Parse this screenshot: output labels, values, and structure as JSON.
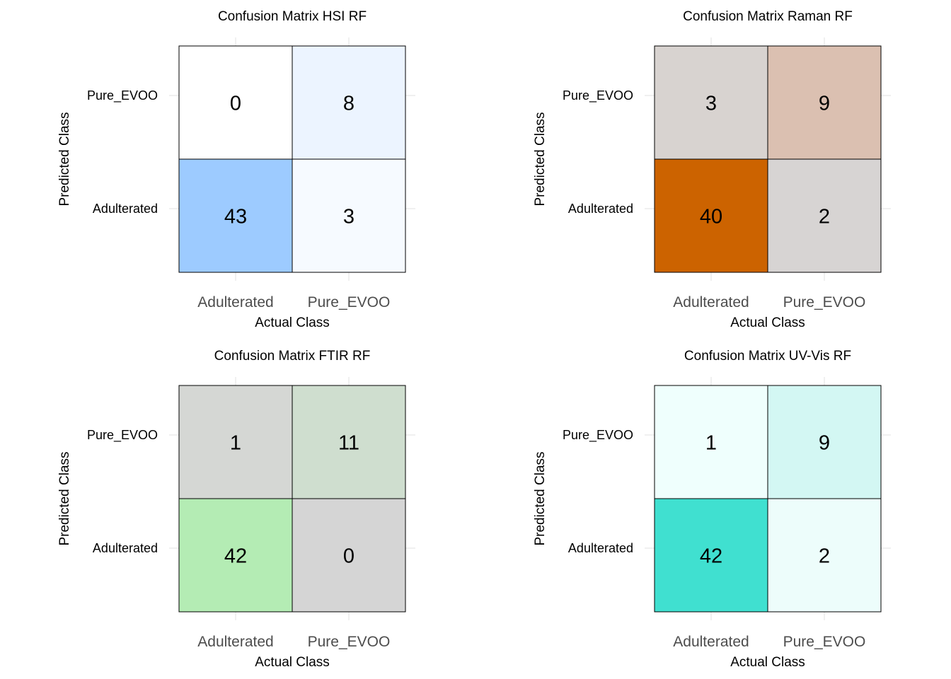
{
  "chart_data": [
    {
      "type": "heatmap",
      "title": "Confusion Matrix HSI RF",
      "xlabel": "Actual Class",
      "ylabel": "Predicted Class",
      "x_categories": [
        "Adulterated",
        "Pure_EVOO"
      ],
      "y_categories": [
        "Pure_EVOO",
        "Adulterated"
      ],
      "cells": [
        {
          "actual": "Adulterated",
          "predicted": "Pure_EVOO",
          "value": 0,
          "color": "#ffffff"
        },
        {
          "actual": "Pure_EVOO",
          "predicted": "Pure_EVOO",
          "value": 8,
          "color": "#ecf4ff"
        },
        {
          "actual": "Adulterated",
          "predicted": "Adulterated",
          "value": 43,
          "color": "#9dcbff"
        },
        {
          "actual": "Pure_EVOO",
          "predicted": "Adulterated",
          "value": 3,
          "color": "#f6faff"
        }
      ]
    },
    {
      "type": "heatmap",
      "title": "Confusion Matrix Raman RF",
      "xlabel": "Actual Class",
      "ylabel": "Predicted Class",
      "x_categories": [
        "Adulterated",
        "Pure_EVOO"
      ],
      "y_categories": [
        "Pure_EVOO",
        "Adulterated"
      ],
      "cells": [
        {
          "actual": "Adulterated",
          "predicted": "Pure_EVOO",
          "value": 3,
          "color": "#d8d3d0"
        },
        {
          "actual": "Pure_EVOO",
          "predicted": "Pure_EVOO",
          "value": 9,
          "color": "#dbc0b1"
        },
        {
          "actual": "Adulterated",
          "predicted": "Adulterated",
          "value": 40,
          "color": "#cc6300"
        },
        {
          "actual": "Pure_EVOO",
          "predicted": "Adulterated",
          "value": 2,
          "color": "#d7d4d3"
        }
      ]
    },
    {
      "type": "heatmap",
      "title": "Confusion Matrix FTIR RF",
      "xlabel": "Actual Class",
      "ylabel": "Predicted Class",
      "x_categories": [
        "Adulterated",
        "Pure_EVOO"
      ],
      "y_categories": [
        "Pure_EVOO",
        "Adulterated"
      ],
      "cells": [
        {
          "actual": "Adulterated",
          "predicted": "Pure_EVOO",
          "value": 1,
          "color": "#d5d7d4"
        },
        {
          "actual": "Pure_EVOO",
          "predicted": "Pure_EVOO",
          "value": 11,
          "color": "#cfdecf"
        },
        {
          "actual": "Adulterated",
          "predicted": "Adulterated",
          "value": 42,
          "color": "#b4ecb4"
        },
        {
          "actual": "Pure_EVOO",
          "predicted": "Adulterated",
          "value": 0,
          "color": "#d5d5d5"
        }
      ]
    },
    {
      "type": "heatmap",
      "title": "Confusion Matrix UV-Vis RF",
      "xlabel": "Actual Class",
      "ylabel": "Predicted Class",
      "x_categories": [
        "Adulterated",
        "Pure_EVOO"
      ],
      "y_categories": [
        "Pure_EVOO",
        "Adulterated"
      ],
      "cells": [
        {
          "actual": "Adulterated",
          "predicted": "Pure_EVOO",
          "value": 1,
          "color": "#effffd"
        },
        {
          "actual": "Pure_EVOO",
          "predicted": "Pure_EVOO",
          "value": 9,
          "color": "#d3f7f3"
        },
        {
          "actual": "Adulterated",
          "predicted": "Adulterated",
          "value": 42,
          "color": "#40e0d0"
        },
        {
          "actual": "Pure_EVOO",
          "predicted": "Adulterated",
          "value": 2,
          "color": "#edfdfb"
        }
      ]
    }
  ]
}
